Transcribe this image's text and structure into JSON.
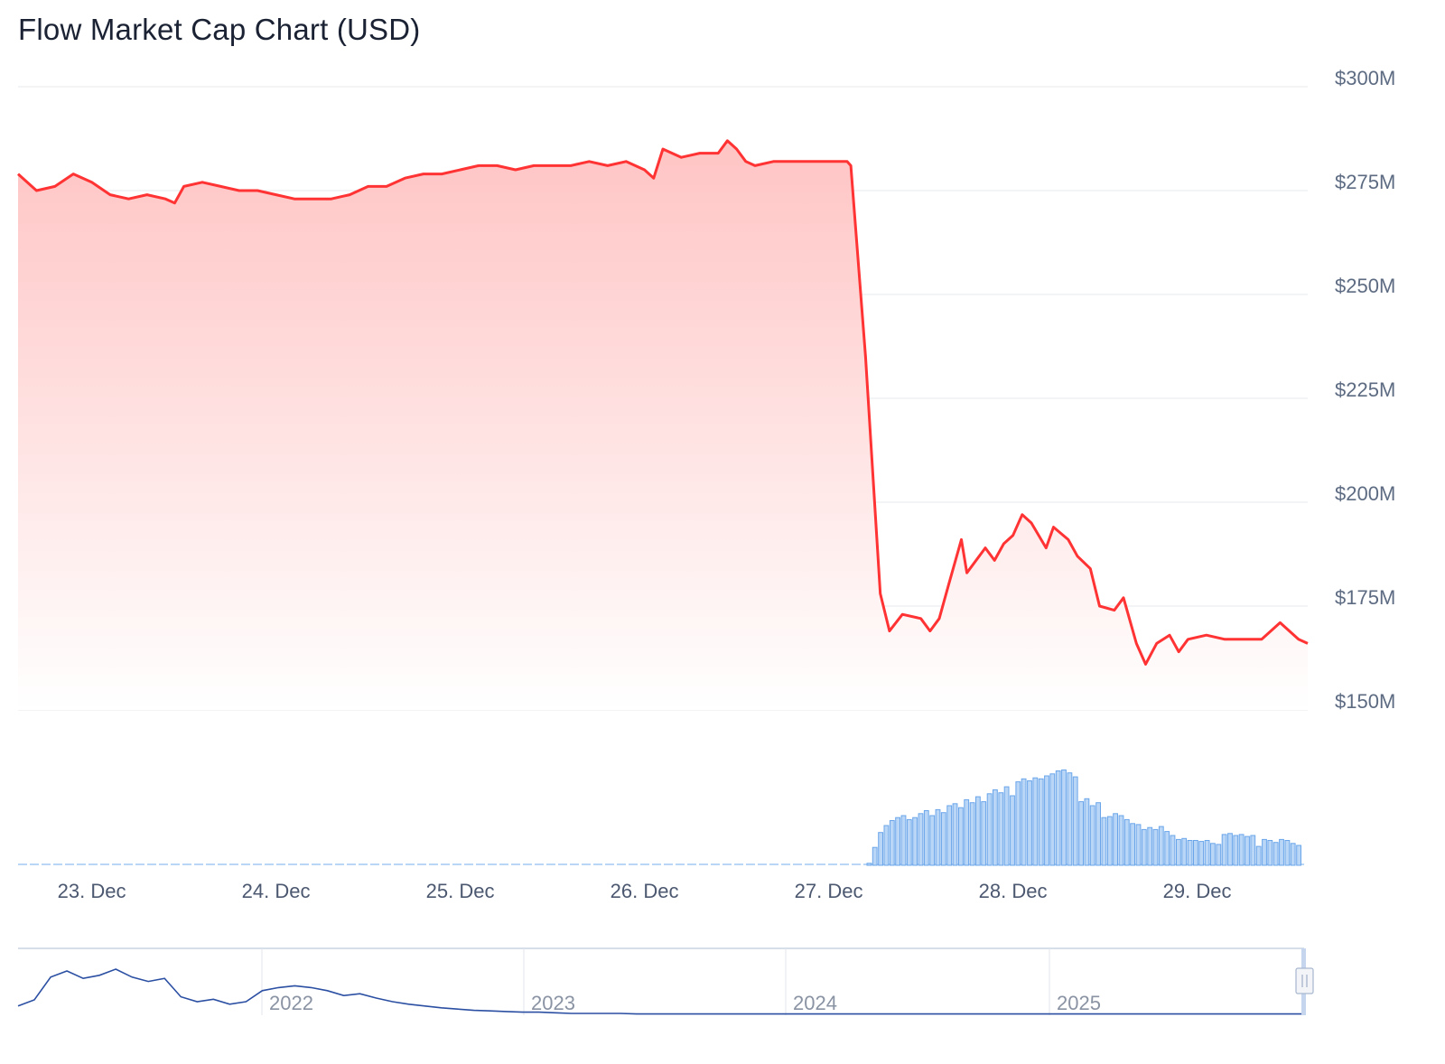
{
  "title": "Flow Market Cap Chart (USD)",
  "colors": {
    "line": "#ff3333",
    "area_top": "#ffc4c4",
    "volume_fill": "#b9d6f7",
    "volume_stroke": "#6aa5ea",
    "navigator_line": "#2b4fa2",
    "grid": "#e6e9ee"
  },
  "chart_data": {
    "type": "area",
    "y_axis": {
      "min": 150,
      "max": 300,
      "unit": "M USD",
      "ticks": [
        "$150M",
        "$175M",
        "$200M",
        "$225M",
        "$250M",
        "$275M",
        "$300M"
      ],
      "tick_values": [
        150,
        175,
        200,
        225,
        250,
        275,
        300
      ]
    },
    "x_axis": {
      "start_day": 22.6,
      "end_day": 29.6,
      "ticks": [
        "23. Dec",
        "24. Dec",
        "25. Dec",
        "26. Dec",
        "27. Dec",
        "28. Dec",
        "29. Dec"
      ],
      "tick_days": [
        23,
        24,
        25,
        26,
        27,
        28,
        29
      ]
    },
    "market_cap_series": {
      "name": "Market Cap",
      "points": [
        [
          22.6,
          279
        ],
        [
          22.7,
          275
        ],
        [
          22.8,
          276
        ],
        [
          22.9,
          279
        ],
        [
          23.0,
          277
        ],
        [
          23.1,
          274
        ],
        [
          23.2,
          273
        ],
        [
          23.3,
          274
        ],
        [
          23.4,
          273
        ],
        [
          23.45,
          272
        ],
        [
          23.5,
          276
        ],
        [
          23.6,
          277
        ],
        [
          23.7,
          276
        ],
        [
          23.8,
          275
        ],
        [
          23.9,
          275
        ],
        [
          24.0,
          274
        ],
        [
          24.1,
          273
        ],
        [
          24.2,
          273
        ],
        [
          24.3,
          273
        ],
        [
          24.4,
          274
        ],
        [
          24.5,
          276
        ],
        [
          24.6,
          276
        ],
        [
          24.7,
          278
        ],
        [
          24.8,
          279
        ],
        [
          24.9,
          279
        ],
        [
          25.0,
          280
        ],
        [
          25.1,
          281
        ],
        [
          25.2,
          281
        ],
        [
          25.3,
          280
        ],
        [
          25.4,
          281
        ],
        [
          25.5,
          281
        ],
        [
          25.6,
          281
        ],
        [
          25.7,
          282
        ],
        [
          25.8,
          281
        ],
        [
          25.9,
          282
        ],
        [
          26.0,
          280
        ],
        [
          26.05,
          278
        ],
        [
          26.1,
          285
        ],
        [
          26.2,
          283
        ],
        [
          26.3,
          284
        ],
        [
          26.4,
          284
        ],
        [
          26.45,
          287
        ],
        [
          26.5,
          285
        ],
        [
          26.55,
          282
        ],
        [
          26.6,
          281
        ],
        [
          26.7,
          282
        ],
        [
          26.8,
          282
        ],
        [
          26.9,
          282
        ],
        [
          27.0,
          282
        ],
        [
          27.1,
          282
        ],
        [
          27.12,
          281
        ],
        [
          27.2,
          235
        ],
        [
          27.28,
          178
        ],
        [
          27.33,
          169
        ],
        [
          27.4,
          173
        ],
        [
          27.5,
          172
        ],
        [
          27.55,
          169
        ],
        [
          27.6,
          172
        ],
        [
          27.65,
          180
        ],
        [
          27.72,
          191
        ],
        [
          27.75,
          183
        ],
        [
          27.85,
          189
        ],
        [
          27.9,
          186
        ],
        [
          27.95,
          190
        ],
        [
          28.0,
          192
        ],
        [
          28.05,
          197
        ],
        [
          28.1,
          195
        ],
        [
          28.18,
          189
        ],
        [
          28.22,
          194
        ],
        [
          28.3,
          191
        ],
        [
          28.35,
          187
        ],
        [
          28.42,
          184
        ],
        [
          28.47,
          175
        ],
        [
          28.55,
          174
        ],
        [
          28.6,
          177
        ],
        [
          28.67,
          166
        ],
        [
          28.72,
          161
        ],
        [
          28.78,
          166
        ],
        [
          28.85,
          168
        ],
        [
          28.9,
          164
        ],
        [
          28.95,
          167
        ],
        [
          29.05,
          168
        ],
        [
          29.15,
          167
        ],
        [
          29.25,
          167
        ],
        [
          29.35,
          167
        ],
        [
          29.45,
          171
        ],
        [
          29.55,
          167
        ],
        [
          29.6,
          166
        ]
      ]
    },
    "volume_series": {
      "name": "Volume",
      "note_scale": "relative 0-1",
      "bars": [
        0.02,
        0.18,
        0.33,
        0.4,
        0.45,
        0.48,
        0.5,
        0.46,
        0.48,
        0.52,
        0.55,
        0.5,
        0.56,
        0.53,
        0.6,
        0.62,
        0.58,
        0.66,
        0.63,
        0.69,
        0.64,
        0.72,
        0.76,
        0.73,
        0.79,
        0.7,
        0.84,
        0.87,
        0.85,
        0.88,
        0.87,
        0.9,
        0.92,
        0.95,
        0.96,
        0.93,
        0.89,
        0.64,
        0.67,
        0.6,
        0.63,
        0.48,
        0.49,
        0.52,
        0.5,
        0.46,
        0.42,
        0.41,
        0.36,
        0.38,
        0.36,
        0.39,
        0.34,
        0.3,
        0.26,
        0.27,
        0.25,
        0.25,
        0.24,
        0.25,
        0.22,
        0.21,
        0.31,
        0.32,
        0.3,
        0.31,
        0.29,
        0.3,
        0.19,
        0.26,
        0.25,
        0.23,
        0.26,
        0.25,
        0.22,
        0.2
      ]
    },
    "navigator": {
      "years": [
        "2022",
        "2023",
        "2024",
        "2025"
      ],
      "series_relative": [
        0.15,
        0.25,
        0.62,
        0.72,
        0.6,
        0.65,
        0.75,
        0.62,
        0.55,
        0.6,
        0.3,
        0.22,
        0.26,
        0.18,
        0.22,
        0.4,
        0.45,
        0.48,
        0.45,
        0.4,
        0.32,
        0.35,
        0.28,
        0.22,
        0.18,
        0.15,
        0.12,
        0.1,
        0.08,
        0.07,
        0.06,
        0.05,
        0.05,
        0.04,
        0.03,
        0.03,
        0.03,
        0.03,
        0.02,
        0.02,
        0.02,
        0.02,
        0.02,
        0.02,
        0.02,
        0.02,
        0.02,
        0.02,
        0.02,
        0.02,
        0.02,
        0.02,
        0.02,
        0.02,
        0.02,
        0.02,
        0.02,
        0.02,
        0.02,
        0.02,
        0.02,
        0.02,
        0.02,
        0.02,
        0.02,
        0.02,
        0.02,
        0.02,
        0.02,
        0.02,
        0.02,
        0.02,
        0.02,
        0.02,
        0.02,
        0.02,
        0.02,
        0.02,
        0.02,
        0.02
      ]
    }
  }
}
